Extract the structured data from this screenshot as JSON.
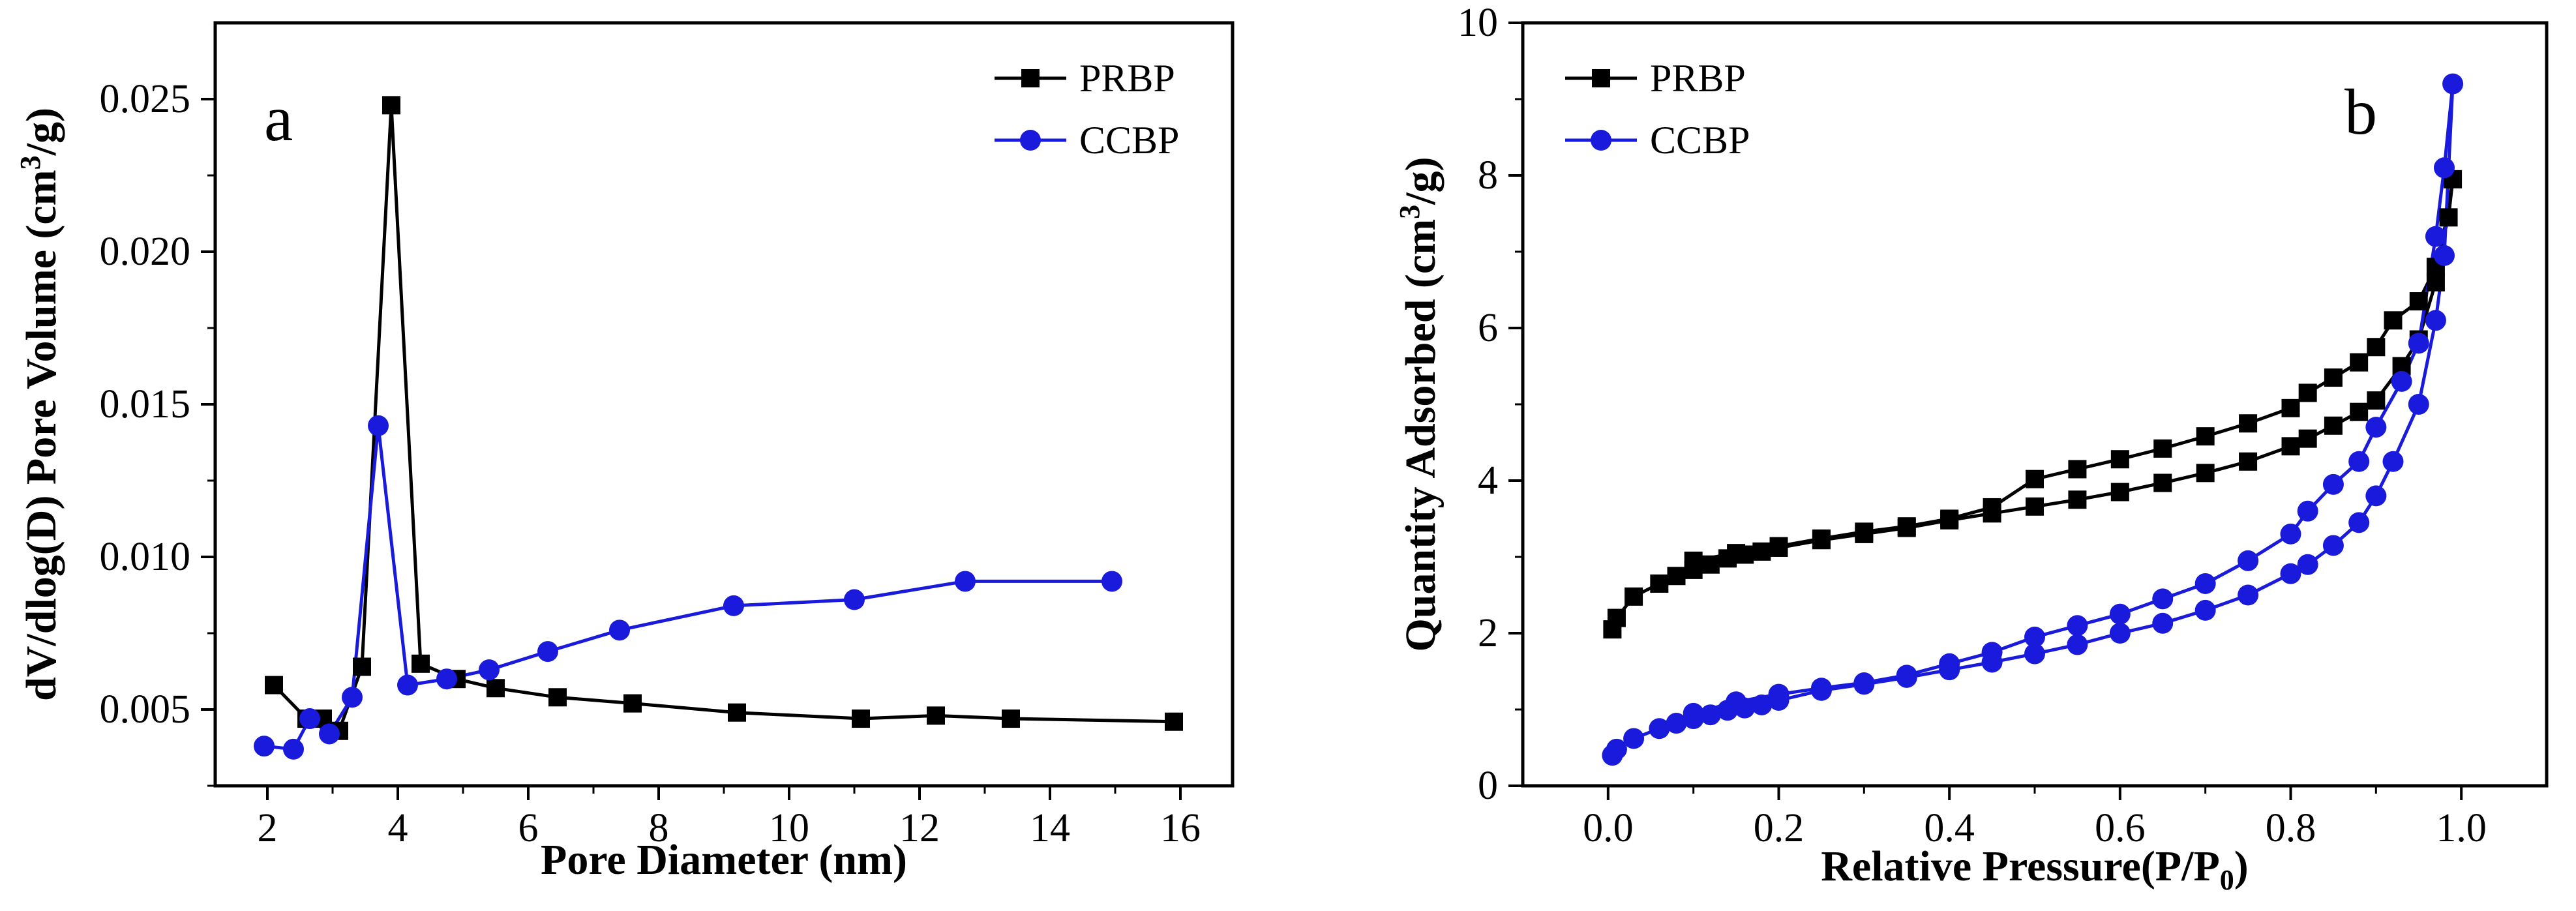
{
  "chart_data": [
    {
      "type": "line",
      "panel_label": "a",
      "xlabel": "Pore Diameter (nm)",
      "ylabel": "dV/dlog(D) Pore Volume (cm3/g)",
      "ylabel_parts": {
        "main": "dV/dlog(D) Pore Volume (cm",
        "sup": "3",
        "tail": "/g)"
      },
      "xlim": [
        1.2,
        16.8
      ],
      "ylim": [
        0.0025,
        0.0275
      ],
      "xticks": [
        2,
        4,
        6,
        8,
        10,
        12,
        14,
        16
      ],
      "xtick_labels": [
        "2",
        "4",
        "6",
        "8",
        "10",
        "12",
        "14",
        "16"
      ],
      "yticks": [
        0.005,
        0.01,
        0.015,
        0.02,
        0.025
      ],
      "ytick_labels": [
        "0.005",
        "0.010",
        "0.015",
        "0.020",
        "0.025"
      ],
      "legend_position": "top-right",
      "series": [
        {
          "name": "PRBP",
          "marker": "square",
          "color": "#000000",
          "x": [
            2.1,
            2.6,
            2.85,
            3.1,
            3.45,
            3.9,
            4.35,
            4.9,
            5.5,
            6.45,
            7.6,
            9.2,
            11.1,
            12.25,
            13.4,
            15.9
          ],
          "y": [
            0.0058,
            0.0047,
            0.0047,
            0.0043,
            0.0064,
            0.0248,
            0.0065,
            0.006,
            0.0057,
            0.0054,
            0.0052,
            0.0049,
            0.0047,
            0.0048,
            0.0047,
            0.0046
          ]
        },
        {
          "name": "CCBP",
          "marker": "circle",
          "color": "#1a1adc",
          "x": [
            1.95,
            2.4,
            2.65,
            2.95,
            3.3,
            3.7,
            4.15,
            4.75,
            5.4,
            6.3,
            7.4,
            9.15,
            11.0,
            12.7,
            14.95
          ],
          "y": [
            0.0038,
            0.0037,
            0.0047,
            0.0042,
            0.0054,
            0.0143,
            0.0058,
            0.006,
            0.0063,
            0.0069,
            0.0076,
            0.0084,
            0.0086,
            0.0092,
            0.0092
          ]
        }
      ]
    },
    {
      "type": "line",
      "panel_label": "b",
      "xlabel": "Relative Pressure(P/P0)",
      "xlabel_parts": {
        "main": "Relative Pressure(P/P",
        "sub": "0",
        "tail": ")"
      },
      "ylabel": "Quantity Adsorbed (cm3/g)",
      "ylabel_parts": {
        "main": "Quantity Adsorbed (cm",
        "sup": "3",
        "tail": "/g)"
      },
      "xlim": [
        -0.1,
        1.1
      ],
      "ylim": [
        0,
        10
      ],
      "xticks": [
        0.0,
        0.2,
        0.4,
        0.6,
        0.8,
        1.0
      ],
      "xtick_labels": [
        "0.0",
        "0.2",
        "0.4",
        "0.6",
        "0.8",
        "1.0"
      ],
      "yticks": [
        0,
        2,
        4,
        6,
        8,
        10
      ],
      "ytick_labels": [
        "0",
        "2",
        "4",
        "6",
        "8",
        "10"
      ],
      "legend_position": "top-left",
      "series": [
        {
          "name": "PRBP",
          "marker": "square",
          "color": "#000000",
          "x": [
            0.005,
            0.01,
            0.03,
            0.06,
            0.08,
            0.1,
            0.12,
            0.14,
            0.16,
            0.18,
            0.2,
            0.25,
            0.3,
            0.35,
            0.4,
            0.45,
            0.5,
            0.55,
            0.6,
            0.65,
            0.7,
            0.75,
            0.8,
            0.82,
            0.85,
            0.88,
            0.9,
            0.93,
            0.95,
            0.97,
            0.99,
            0.985,
            0.97,
            0.95,
            0.92,
            0.9,
            0.88,
            0.85,
            0.82,
            0.8,
            0.75,
            0.7,
            0.65,
            0.6,
            0.55,
            0.5,
            0.45,
            0.4,
            0.35,
            0.3,
            0.25,
            0.2,
            0.15,
            0.1
          ],
          "y": [
            2.05,
            2.2,
            2.48,
            2.65,
            2.75,
            2.83,
            2.9,
            2.98,
            3.03,
            3.07,
            3.12,
            3.22,
            3.3,
            3.38,
            3.48,
            3.57,
            3.66,
            3.75,
            3.85,
            3.97,
            4.1,
            4.25,
            4.45,
            4.55,
            4.72,
            4.9,
            5.05,
            5.5,
            5.85,
            6.6,
            7.95,
            7.45,
            6.8,
            6.35,
            6.1,
            5.75,
            5.55,
            5.35,
            5.15,
            4.95,
            4.75,
            4.58,
            4.42,
            4.28,
            4.15,
            4.02,
            3.65,
            3.5,
            3.4,
            3.33,
            3.24,
            3.14,
            3.05,
            2.95
          ]
        },
        {
          "name": "CCBP",
          "marker": "circle",
          "color": "#1a1adc",
          "x": [
            0.005,
            0.01,
            0.03,
            0.06,
            0.08,
            0.1,
            0.12,
            0.14,
            0.16,
            0.18,
            0.2,
            0.25,
            0.3,
            0.35,
            0.4,
            0.45,
            0.5,
            0.55,
            0.6,
            0.65,
            0.7,
            0.75,
            0.8,
            0.82,
            0.85,
            0.88,
            0.9,
            0.92,
            0.95,
            0.97,
            0.98,
            0.99,
            0.98,
            0.97,
            0.95,
            0.93,
            0.9,
            0.88,
            0.85,
            0.82,
            0.8,
            0.75,
            0.7,
            0.65,
            0.6,
            0.55,
            0.5,
            0.45,
            0.4,
            0.35,
            0.3,
            0.25,
            0.2,
            0.15,
            0.1
          ],
          "y": [
            0.4,
            0.48,
            0.62,
            0.75,
            0.82,
            0.88,
            0.93,
            0.99,
            1.02,
            1.06,
            1.12,
            1.25,
            1.33,
            1.42,
            1.52,
            1.62,
            1.73,
            1.85,
            2.0,
            2.13,
            2.3,
            2.5,
            2.78,
            2.9,
            3.15,
            3.45,
            3.8,
            4.25,
            5.0,
            6.1,
            6.95,
            9.2,
            8.1,
            7.2,
            5.8,
            5.3,
            4.7,
            4.25,
            3.95,
            3.6,
            3.3,
            2.95,
            2.65,
            2.45,
            2.25,
            2.1,
            1.95,
            1.75,
            1.6,
            1.45,
            1.35,
            1.28,
            1.2,
            1.1,
            0.95
          ]
        }
      ]
    }
  ]
}
